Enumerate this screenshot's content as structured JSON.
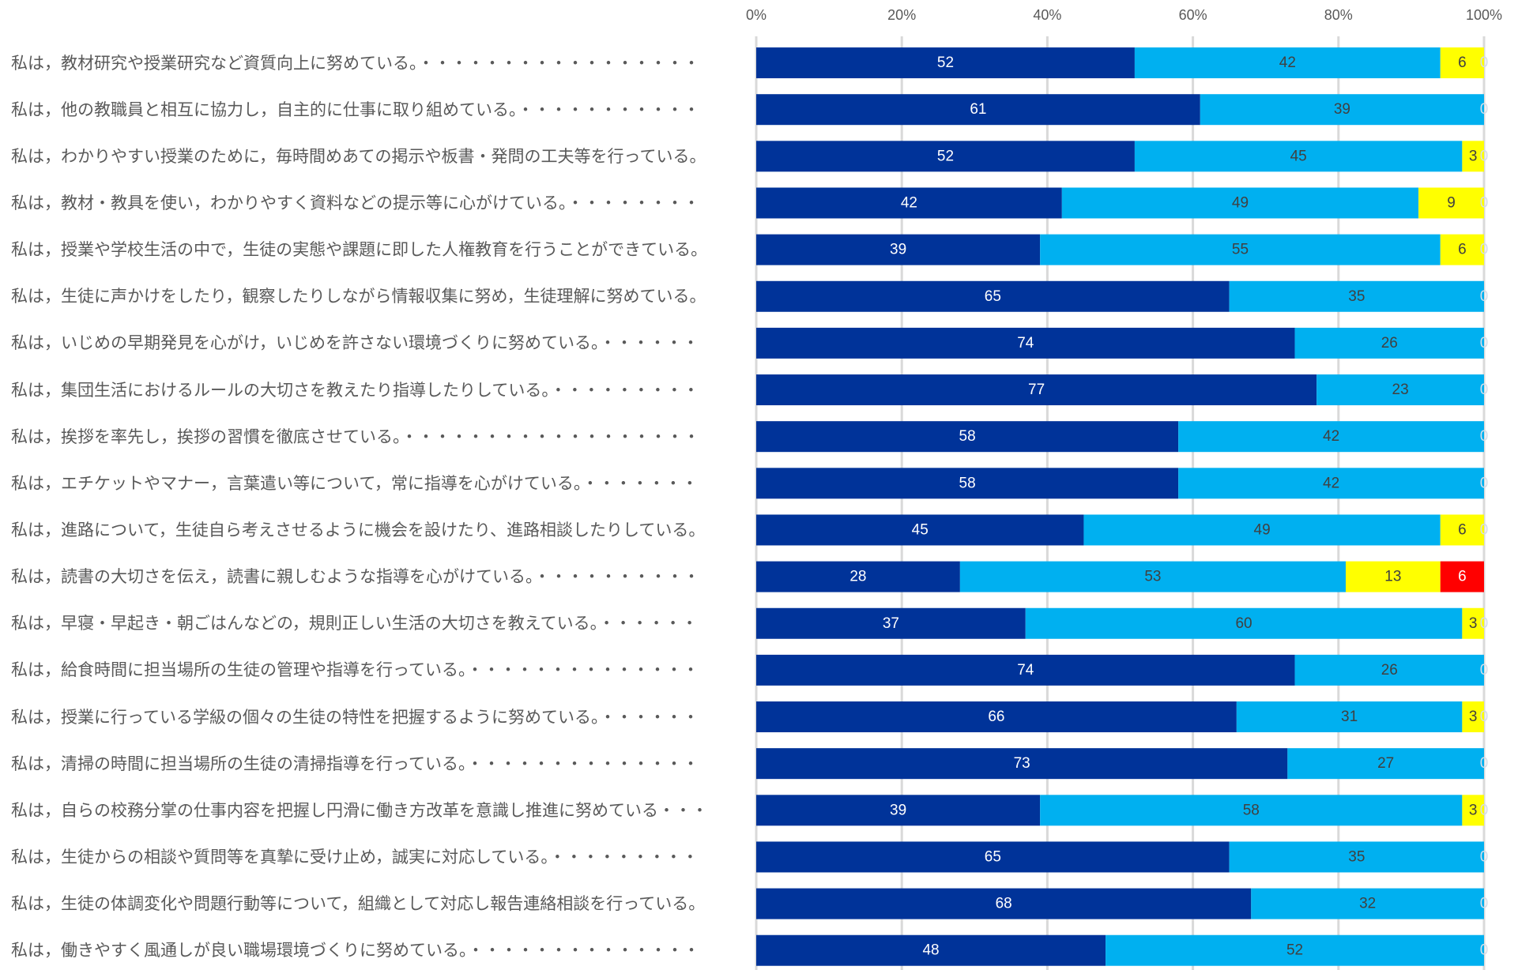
{
  "chart_data": {
    "type": "bar",
    "orientation": "horizontal",
    "stacking": "percent",
    "categories": [
      "私は，教材研究や授業研究など資質向上に努めている。・・・・・・・・・・・・・・・・・",
      "私は，他の教職員と相互に協力し，自主的に仕事に取り組めている。・・・・・・・・・・・",
      "私は，わかりやすい授業のために，毎時間めあての掲示や板書・発問の工夫等を行っている。",
      "私は，教材・教具を使い，わかりやすく資料などの提示等に心がけている。・・・・・・・・",
      "私は，授業や学校生活の中で，生徒の実態や課題に即した人権教育を行うことができている。",
      "私は，生徒に声かけをしたり，観察したりしながら情報収集に努め，生徒理解に努めている。",
      "私は，いじめの早期発見を心がけ，いじめを許さない環境づくりに努めている。・・・・・・",
      "私は，集団生活におけるルールの大切さを教えたり指導したりしている。・・・・・・・・・",
      "私は，挨拶を率先し，挨拶の習慣を徹底させている。・・・・・・・・・・・・・・・・・・",
      "私は，エチケットやマナー，言葉遣い等について，常に指導を心がけている。・・・・・・・",
      "私は，進路について，生徒自ら考えさせるように機会を設けたり、進路相談したりしている。",
      "私は，読書の大切さを伝え，読書に親しむような指導を心がけている。・・・・・・・・・・",
      "私は，早寝・早起き・朝ごはんなどの，規則正しい生活の大切さを教えている。・・・・・・",
      "私は，給食時間に担当場所の生徒の管理や指導を行っている。・・・・・・・・・・・・・・",
      "私は，授業に行っている学級の個々の生徒の特性を把握するように努めている。・・・・・・",
      "私は，清掃の時間に担当場所の生徒の清掃指導を行っている。・・・・・・・・・・・・・・",
      "私は，自らの校務分掌の仕事内容を把握し円滑に働き方改革を意識し推進に努めている・・・",
      "私は，生徒からの相談や質問等を真摯に受け止め，誠実に対応している。・・・・・・・・・",
      "私は，生徒の体調変化や問題行動等について，組織として対応し報告連絡相談を行っている。",
      "私は，働きやすく風通しが良い職場環境づくりに努めている。・・・・・・・・・・・・・・"
    ],
    "series": [
      {
        "values": [
          52,
          61,
          52,
          42,
          39,
          65,
          74,
          77,
          58,
          58,
          45,
          28,
          37,
          74,
          66,
          73,
          39,
          65,
          68,
          48
        ],
        "color": "#003399",
        "label_color": "#FFFFFF"
      },
      {
        "values": [
          42,
          39,
          45,
          49,
          55,
          35,
          26,
          23,
          42,
          42,
          49,
          53,
          60,
          26,
          31,
          27,
          58,
          35,
          32,
          52
        ],
        "color": "#00B0F0",
        "label_color": "#404040"
      },
      {
        "values": [
          6,
          0,
          3,
          9,
          6,
          0,
          0,
          0,
          0,
          0,
          6,
          13,
          3,
          0,
          3,
          0,
          3,
          0,
          0,
          0
        ],
        "color": "#FFFF00",
        "label_color": "#404040"
      },
      {
        "values": [
          0,
          0,
          0,
          0,
          0,
          0,
          0,
          0,
          0,
          0,
          0,
          6,
          0,
          0,
          0,
          0,
          0,
          0,
          0,
          0
        ],
        "color": "#FF0000",
        "label_color": "#FFFFFF"
      }
    ],
    "x_ticks": [
      "0%",
      "20%",
      "40%",
      "60%",
      "80%",
      "100%"
    ],
    "xlim": [
      0,
      100
    ],
    "axis_position": "top",
    "grid": true,
    "legend": "none",
    "data_labels": true
  }
}
